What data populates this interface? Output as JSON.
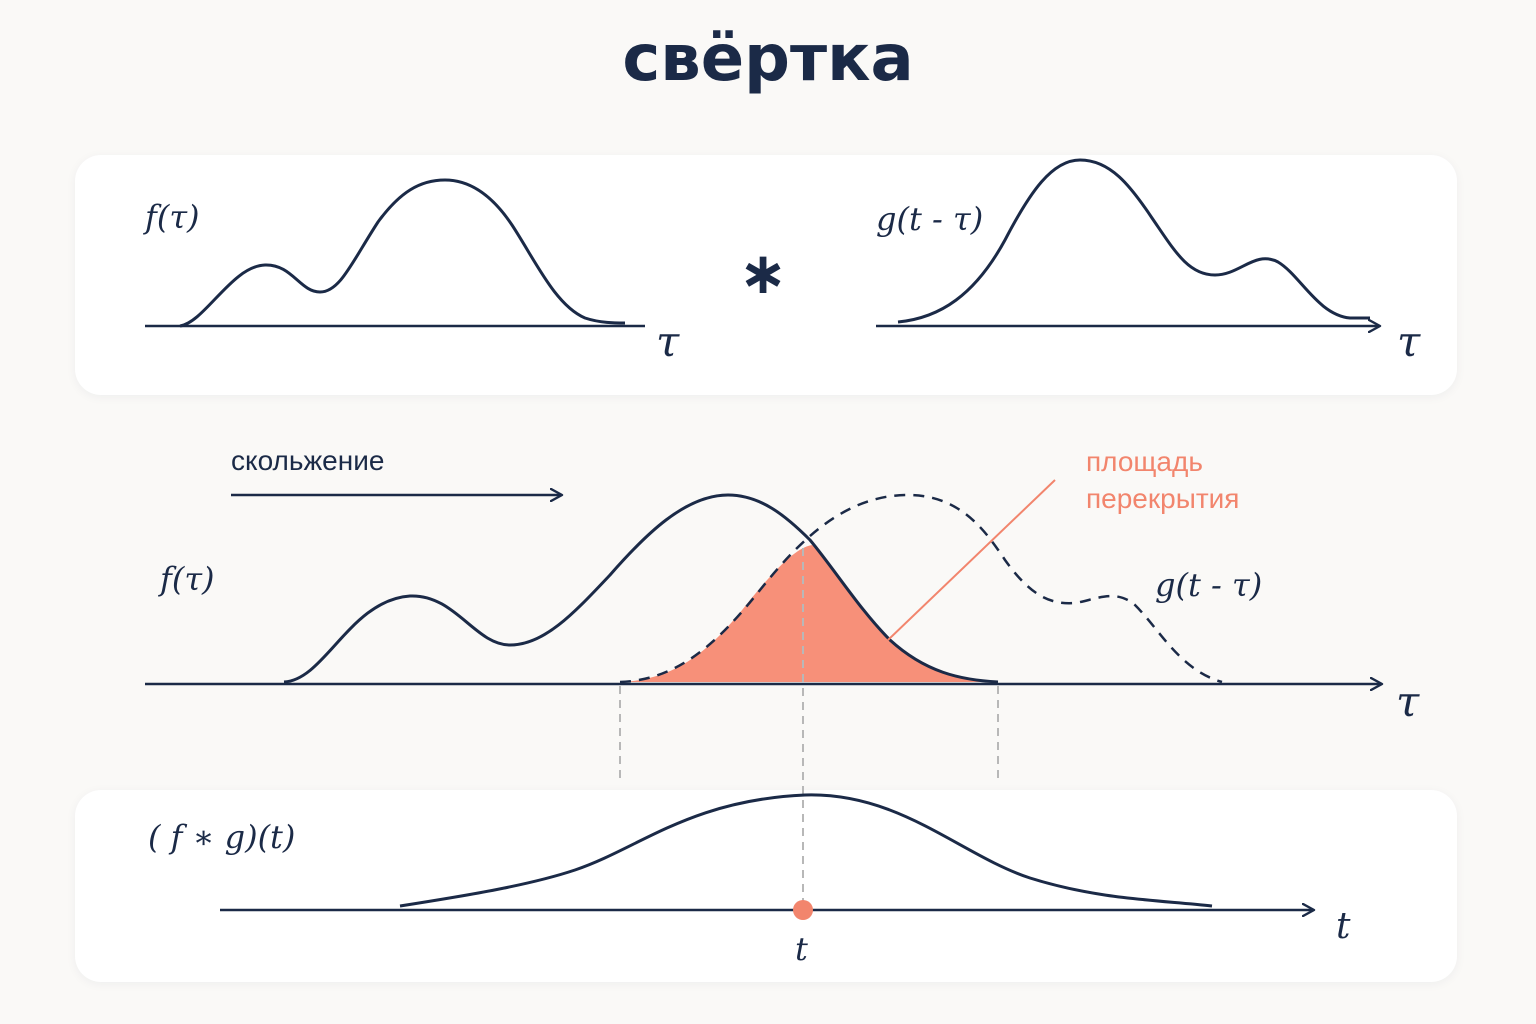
{
  "title": "свёртка",
  "top_panel": {
    "f_label": "f(τ)",
    "operator": "∗",
    "g_label": "g(t - τ)",
    "axis_left_label": "τ",
    "axis_right_label": "τ"
  },
  "middle": {
    "sliding_label": "скольжение",
    "f_label": "f(τ)",
    "g_label": "g(t - τ)",
    "overlap_label_line1": "площадь",
    "overlap_label_line2": "перекрытия",
    "axis_label": "τ"
  },
  "bottom_panel": {
    "conv_label": "( f ∗ g)(t)",
    "axis_label": "t",
    "point_label": "t"
  },
  "colors": {
    "ink": "#1b2a47",
    "accent": "#f2856d",
    "fill": "#f79079",
    "guide": "#b8b8b8"
  }
}
